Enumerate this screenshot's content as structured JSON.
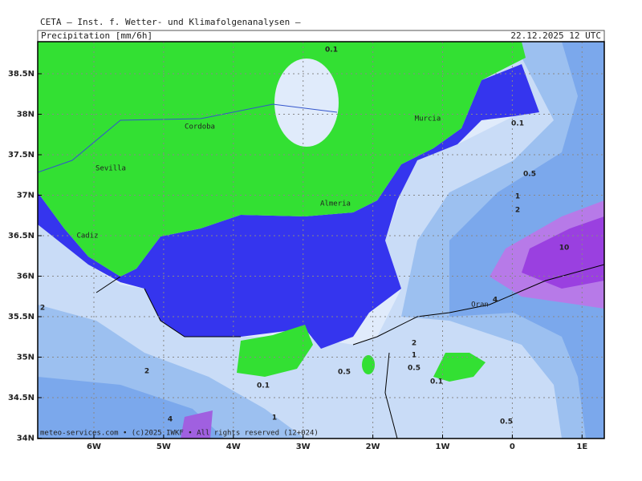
{
  "header": {
    "title": "CETA – Inst. f. Wetter- und Klimafolgenanalysen –",
    "variable": "Precipitation [mm/6h]",
    "valid_time": "22.12.2025 12 UTC"
  },
  "axes": {
    "lat_labels": [
      "38.5N",
      "38N",
      "37.5N",
      "37N",
      "36.5N",
      "36N",
      "35.5N",
      "35N",
      "34.5N",
      "34N"
    ],
    "lon_labels": [
      "6W",
      "5W",
      "4W",
      "3W",
      "2W",
      "1W",
      "0",
      "1E"
    ]
  },
  "cities": [
    "Cordoba",
    "Murcia",
    "Sevilla",
    "Almeria",
    "Cadiz",
    "Oran"
  ],
  "contour_labels": [
    0.1,
    0.1,
    0.5,
    1,
    2,
    10,
    4,
    2,
    1,
    0.5,
    0.1,
    0.5,
    0.1,
    2,
    1,
    4,
    2,
    0.5
  ],
  "footer": "meteo-services.com • (c)2025 IWKF • All rights reserved (12+024)"
}
